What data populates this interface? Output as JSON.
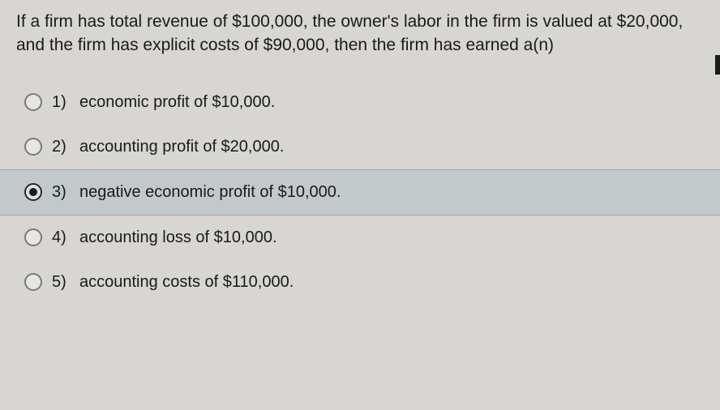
{
  "quiz": {
    "question_text": "If a firm has total revenue of $100,000, the owner's labor in the firm is valued at $20,000, and the firm has explicit costs of $90,000, then the firm has earned a(n)",
    "selected_index": 2,
    "options": [
      {
        "number": "1)",
        "text": "economic profit of $10,000."
      },
      {
        "number": "2)",
        "text": "accounting profit of $20,000."
      },
      {
        "number": "3)",
        "text": "negative economic profit of $10,000."
      },
      {
        "number": "4)",
        "text": "accounting loss of $10,000."
      },
      {
        "number": "5)",
        "text": "accounting costs of $110,000."
      }
    ]
  },
  "styling": {
    "background_color": "#d8d6d2",
    "selected_background": "#c3c9cb",
    "text_color": "#1a1a1a",
    "radio_border": "#7a7a7a",
    "radio_selected_border": "#2a2a2a",
    "question_fontsize": 21,
    "option_fontsize": 20
  }
}
